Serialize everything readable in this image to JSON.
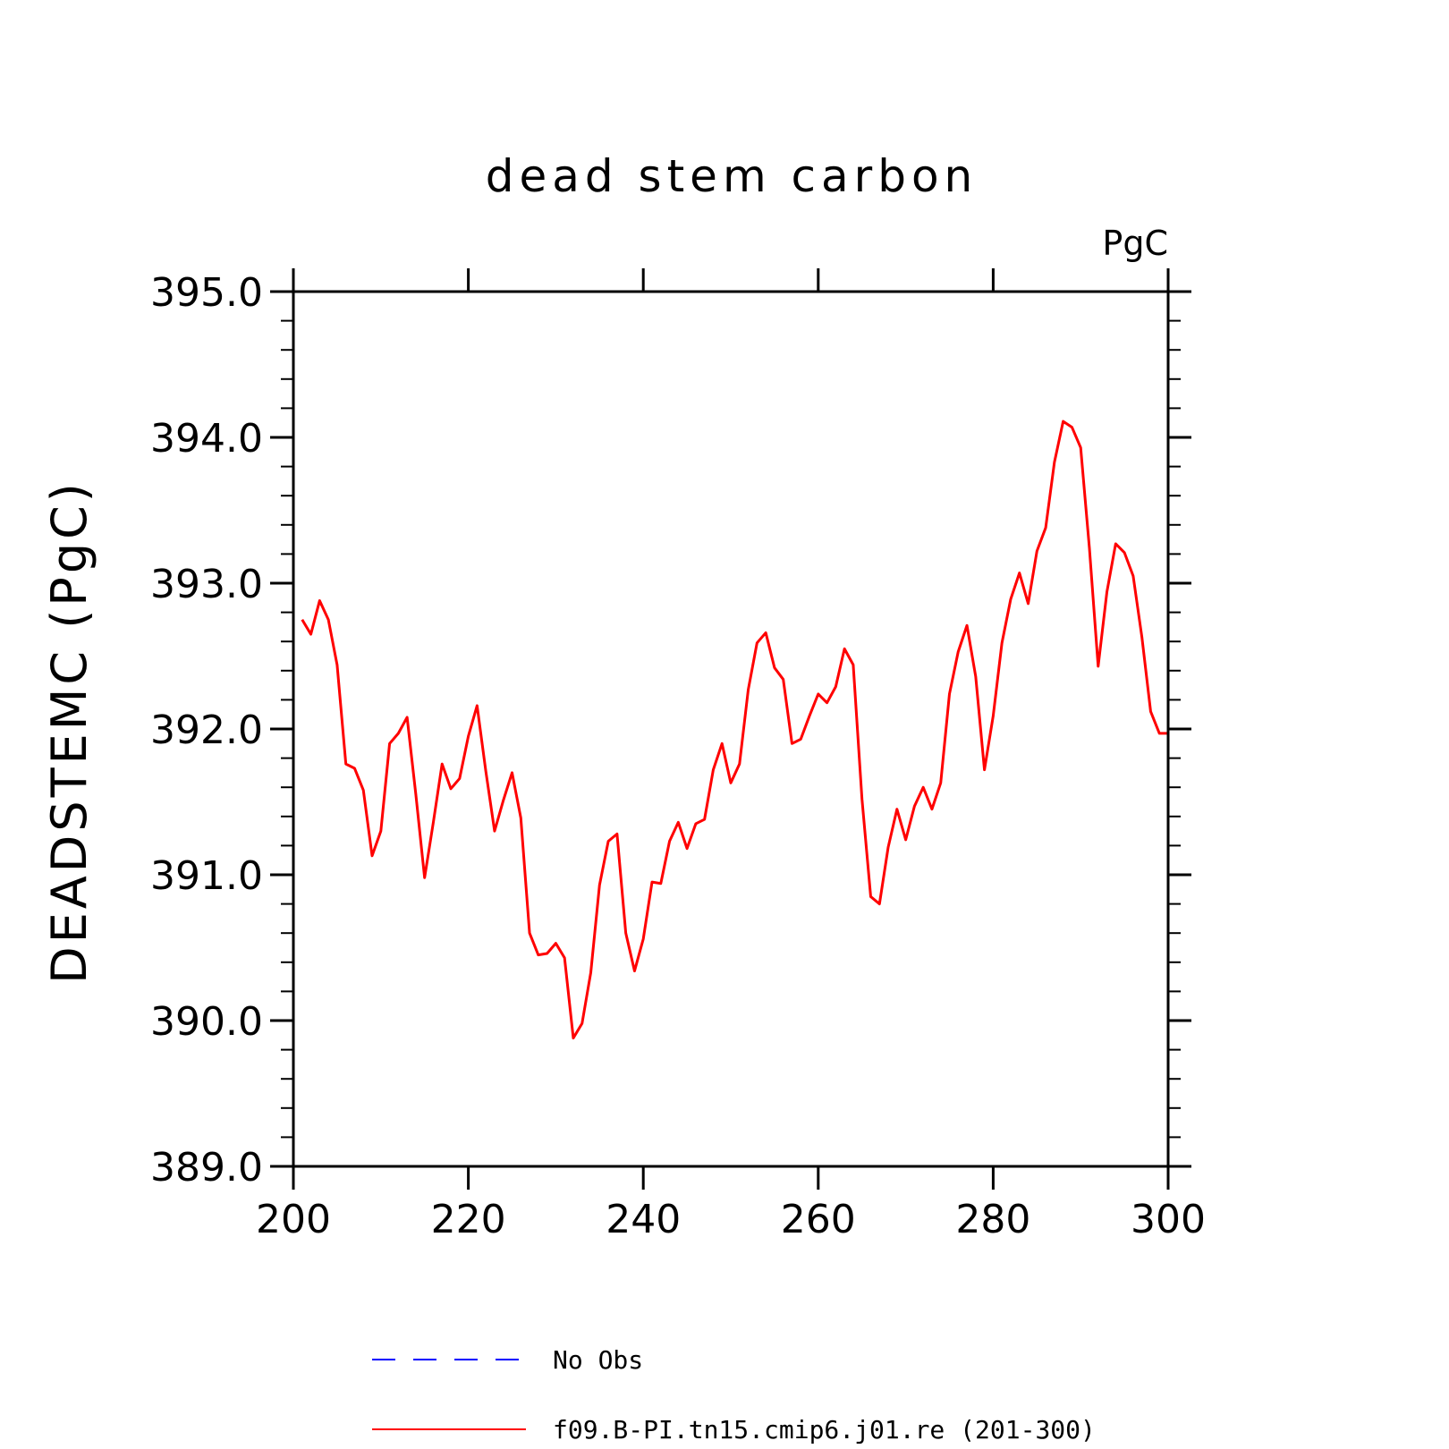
{
  "chart_data": {
    "type": "line",
    "title": "dead stem carbon",
    "units": "PgC",
    "ylabel": "DEADSTEMC   (PgC)",
    "xlabel": "",
    "xlim": [
      200,
      300
    ],
    "ylim": [
      389,
      395
    ],
    "x_ticks": [
      200,
      220,
      240,
      260,
      280,
      300
    ],
    "x_tick_labels": [
      "200",
      "220",
      "240",
      "260",
      "280",
      "300"
    ],
    "y_ticks": [
      389,
      390,
      391,
      392,
      393,
      394,
      395
    ],
    "y_tick_labels": [
      "389.0",
      "390.0",
      "391.0",
      "392.0",
      "393.0",
      "394.0",
      "395.0"
    ],
    "series": [
      {
        "name": "f09.B-PI.tn15.cmip6.j01.re (201-300)",
        "color": "#ff0000",
        "x_start": 201,
        "values": [
          392.75,
          392.65,
          392.88,
          392.75,
          392.44,
          391.76,
          391.73,
          391.58,
          391.13,
          391.3,
          391.9,
          391.97,
          392.08,
          391.55,
          390.98,
          391.36,
          391.76,
          391.59,
          391.66,
          391.95,
          392.16,
          391.71,
          391.3,
          391.51,
          391.7,
          391.39,
          390.6,
          390.45,
          390.46,
          390.53,
          390.43,
          389.88,
          389.98,
          390.33,
          390.93,
          391.23,
          391.28,
          390.6,
          390.34,
          390.56,
          390.95,
          390.94,
          391.23,
          391.36,
          391.18,
          391.35,
          391.38,
          391.72,
          391.9,
          391.63,
          391.76,
          392.27,
          392.59,
          392.66,
          392.42,
          392.34,
          391.9,
          391.93,
          392.09,
          392.24,
          392.18,
          392.29,
          392.55,
          392.44,
          391.52,
          390.85,
          390.8,
          391.19,
          391.45,
          391.24,
          391.47,
          391.6,
          391.45,
          391.63,
          392.24,
          392.53,
          392.71,
          392.36,
          391.72,
          392.09,
          392.59,
          392.89,
          393.07,
          392.86,
          393.22,
          393.38,
          393.83,
          394.11,
          394.07,
          393.93,
          393.24,
          392.43,
          392.94,
          393.27,
          393.21,
          393.05,
          392.63,
          392.12,
          391.97,
          391.97
        ]
      }
    ],
    "legend": [
      {
        "label": "No Obs",
        "color": "#0000ff",
        "style": "dashed"
      },
      {
        "label": "f09.B-PI.tn15.cmip6.j01.re (201-300)",
        "color": "#ff0000",
        "style": "solid"
      }
    ],
    "legend_position": "bottom",
    "grid": false
  }
}
